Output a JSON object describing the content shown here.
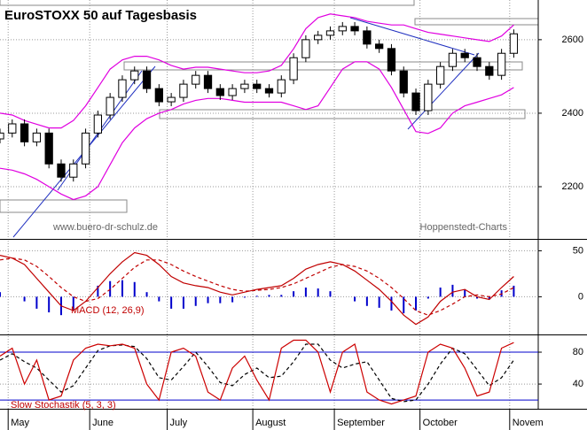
{
  "chart_data": [
    {
      "type": "candlestick",
      "title": "EuroSTOXX 50 auf Tagesbasis",
      "annotations": [
        "www.buero-dr-schulz.de",
        "Hoppenstedt-Charts"
      ],
      "x": [
        0,
        3,
        6,
        9,
        12,
        15,
        18,
        21,
        24,
        27,
        30,
        33,
        36,
        39,
        42,
        45,
        48,
        51,
        54,
        57,
        60,
        63,
        66,
        69,
        72,
        75,
        78,
        81,
        84,
        87,
        90,
        93,
        96,
        99,
        102,
        105,
        108,
        111,
        114,
        117,
        120,
        123,
        126
      ],
      "open": [
        2330,
        2346,
        2371,
        2322,
        2346,
        2262,
        2226,
        2262,
        2346,
        2395,
        2443,
        2491,
        2515,
        2467,
        2431,
        2443,
        2479,
        2503,
        2467,
        2448,
        2467,
        2479,
        2467,
        2455,
        2491,
        2551,
        2600,
        2612,
        2624,
        2636,
        2624,
        2588,
        2576,
        2515,
        2455,
        2407,
        2479,
        2527,
        2563,
        2551,
        2527,
        2503,
        2563
      ],
      "high": [
        2358,
        2383,
        2383,
        2358,
        2358,
        2274,
        2274,
        2358,
        2407,
        2455,
        2503,
        2527,
        2527,
        2479,
        2455,
        2491,
        2515,
        2515,
        2479,
        2479,
        2491,
        2491,
        2479,
        2503,
        2563,
        2612,
        2624,
        2636,
        2648,
        2648,
        2636,
        2600,
        2588,
        2527,
        2467,
        2491,
        2539,
        2575,
        2575,
        2563,
        2539,
        2575,
        2628
      ],
      "low": [
        2318,
        2334,
        2310,
        2310,
        2250,
        2214,
        2214,
        2250,
        2334,
        2383,
        2431,
        2479,
        2455,
        2419,
        2419,
        2431,
        2467,
        2455,
        2436,
        2436,
        2455,
        2455,
        2443,
        2443,
        2479,
        2539,
        2588,
        2600,
        2612,
        2612,
        2576,
        2564,
        2503,
        2443,
        2395,
        2395,
        2467,
        2515,
        2539,
        2515,
        2491,
        2491,
        2551
      ],
      "close": [
        2346,
        2371,
        2322,
        2346,
        2262,
        2226,
        2262,
        2346,
        2395,
        2443,
        2491,
        2515,
        2467,
        2431,
        2443,
        2479,
        2503,
        2467,
        2448,
        2467,
        2479,
        2467,
        2455,
        2491,
        2551,
        2600,
        2612,
        2624,
        2636,
        2624,
        2588,
        2576,
        2515,
        2455,
        2407,
        2479,
        2527,
        2563,
        2551,
        2527,
        2503,
        2563,
        2616
      ],
      "series": [
        {
          "color": "#e000e0",
          "values": [
            2400,
            2395,
            2380,
            2370,
            2360,
            2360,
            2380,
            2420,
            2470,
            2520,
            2545,
            2555,
            2555,
            2545,
            2530,
            2520,
            2525,
            2525,
            2520,
            2515,
            2510,
            2510,
            2515,
            2530,
            2575,
            2630,
            2660,
            2670,
            2665,
            2660,
            2650,
            2645,
            2640,
            2640,
            2630,
            2620,
            2615,
            2610,
            2605,
            2600,
            2595,
            2610,
            2640
          ]
        },
        {
          "color": "#e000e0",
          "values": [
            2250,
            2245,
            2235,
            2220,
            2200,
            2180,
            2165,
            2175,
            2200,
            2260,
            2320,
            2360,
            2385,
            2400,
            2410,
            2425,
            2435,
            2440,
            2440,
            2435,
            2430,
            2430,
            2430,
            2430,
            2420,
            2410,
            2420,
            2470,
            2520,
            2540,
            2540,
            2520,
            2470,
            2410,
            2350,
            2345,
            2360,
            2400,
            2420,
            2430,
            2440,
            2450,
            2470
          ]
        }
      ],
      "xlim": [
        0,
        132
      ],
      "ylim": [
        2058,
        2708
      ],
      "yticks": [
        2200,
        2400,
        2600
      ],
      "grid": true
    },
    {
      "type": "line",
      "title": "MACD (12, 26,9)",
      "x": [
        0,
        3,
        6,
        9,
        12,
        15,
        18,
        21,
        24,
        27,
        30,
        33,
        36,
        39,
        42,
        45,
        48,
        51,
        54,
        57,
        60,
        63,
        66,
        69,
        72,
        75,
        78,
        81,
        84,
        87,
        90,
        93,
        96,
        99,
        102,
        105,
        108,
        111,
        114,
        117,
        120,
        123,
        126
      ],
      "series": [
        {
          "color": "#0000cc",
          "kind": "bar",
          "values": [
            5,
            0,
            -5,
            -13,
            -17,
            -20,
            -15,
            0,
            12,
            17,
            18,
            16,
            5,
            -5,
            -13,
            -13,
            -10,
            -7,
            -7,
            -6,
            -1,
            1,
            2,
            2,
            6,
            10,
            9,
            6,
            0,
            -5,
            -10,
            -12,
            -15,
            -18,
            -15,
            -2,
            10,
            13,
            8,
            -2,
            -3,
            7,
            12
          ]
        },
        {
          "color": "#c00000",
          "dash": true,
          "values": [
            40,
            42,
            40,
            33,
            22,
            10,
            0,
            -5,
            -2,
            8,
            20,
            32,
            40,
            40,
            35,
            28,
            22,
            17,
            12,
            8,
            6,
            7,
            8,
            10,
            14,
            20,
            26,
            32,
            35,
            33,
            28,
            20,
            10,
            -2,
            -15,
            -20,
            -15,
            -8,
            0,
            2,
            0,
            3,
            10
          ]
        },
        {
          "color": "#c00000",
          "values": [
            45,
            42,
            35,
            20,
            5,
            -10,
            -15,
            -5,
            10,
            25,
            38,
            48,
            45,
            35,
            22,
            15,
            12,
            10,
            5,
            2,
            5,
            8,
            10,
            12,
            20,
            30,
            35,
            38,
            35,
            28,
            18,
            8,
            -5,
            -20,
            -30,
            -22,
            -5,
            5,
            8,
            0,
            -3,
            10,
            22
          ]
        }
      ],
      "xlim": [
        0,
        132
      ],
      "ylim": [
        -41,
        61
      ],
      "yticks": [
        0,
        50
      ],
      "grid": true
    },
    {
      "type": "line",
      "title": "Slow Stochastik (5, 3, 3)",
      "x": [
        0,
        3,
        6,
        9,
        12,
        15,
        18,
        21,
        24,
        27,
        30,
        33,
        36,
        39,
        42,
        45,
        48,
        51,
        54,
        57,
        60,
        63,
        66,
        69,
        72,
        75,
        78,
        81,
        84,
        87,
        90,
        93,
        96,
        99,
        102,
        105,
        108,
        111,
        114,
        117,
        120,
        123,
        126
      ],
      "series": [
        {
          "color": "#000000",
          "dash": true,
          "values": [
            70,
            78,
            68,
            60,
            45,
            30,
            38,
            60,
            82,
            88,
            89,
            87,
            72,
            48,
            45,
            62,
            80,
            62,
            42,
            38,
            52,
            60,
            48,
            50,
            68,
            90,
            90,
            70,
            60,
            65,
            68,
            45,
            22,
            18,
            20,
            40,
            65,
            85,
            78,
            58,
            38,
            48,
            70
          ]
        },
        {
          "color": "#cc0000",
          "values": [
            75,
            85,
            40,
            70,
            20,
            25,
            70,
            85,
            90,
            88,
            90,
            85,
            40,
            20,
            80,
            85,
            75,
            30,
            20,
            60,
            75,
            45,
            20,
            85,
            95,
            95,
            80,
            30,
            80,
            90,
            30,
            20,
            15,
            20,
            25,
            80,
            90,
            85,
            60,
            25,
            30,
            85,
            92
          ]
        }
      ],
      "hlines": [
        80,
        20
      ],
      "hline_color": "#0000cc",
      "xlim": [
        0,
        132
      ],
      "ylim": [
        9,
        100
      ],
      "yticks": [
        40,
        80
      ],
      "grid": true,
      "xticks": [
        {
          "value": 2,
          "label": "May"
        },
        {
          "value": 22,
          "label": "June"
        },
        {
          "value": 41,
          "label": "July"
        },
        {
          "value": 62,
          "label": "August"
        },
        {
          "value": 82,
          "label": "September"
        },
        {
          "value": 103,
          "label": "October"
        },
        {
          "value": 125,
          "label": "Novem"
        }
      ]
    }
  ]
}
